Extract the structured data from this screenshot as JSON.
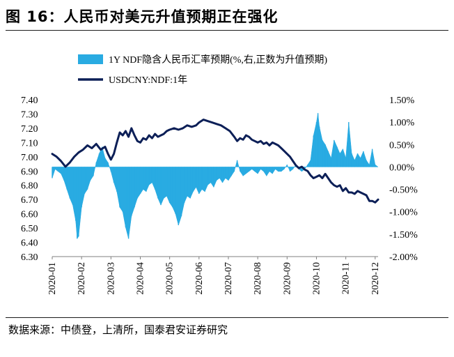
{
  "header": {
    "title": "图 16：人民币对美元升值预期正在强化"
  },
  "footer": {
    "source": "数据来源：中债登，上清所，国泰君安证券研究"
  },
  "colors": {
    "bar": "#29abe2",
    "line": "#0c1f57",
    "axis": "#7f7f7f",
    "text": "#000000"
  },
  "chart_data": {
    "type": "bar+line",
    "title": "",
    "legend": [
      {
        "name": "1Y NDF隐含人民币汇率预期(%,右,正数为升值预期)",
        "kind": "bar"
      },
      {
        "name": "USDCNY:NDF:1年",
        "kind": "line"
      }
    ],
    "legend_position": "top-center",
    "x_tick_labels": [
      "2020-01",
      "2020-02",
      "2020-03",
      "2020-04",
      "2020-05",
      "2020-06",
      "2020-07",
      "2020-08",
      "2020-09",
      "2020-10",
      "2020-11",
      "2020-12"
    ],
    "y_left": {
      "ticks": [
        "7.40",
        "7.30",
        "7.20",
        "7.10",
        "7.00",
        "6.90",
        "6.80",
        "6.70",
        "6.60",
        "6.50",
        "6.40",
        "6.30"
      ],
      "range": [
        6.3,
        7.4
      ]
    },
    "y_right": {
      "ticks": [
        "1.50%",
        "1.00%",
        "0.50%",
        "0.00%",
        "-0.50%",
        "-1.00%",
        "-1.50%",
        "-2.00%"
      ],
      "range": [
        -2.0,
        1.5
      ]
    },
    "months_span": [
      0,
      11.1
    ],
    "series": [
      {
        "name": "USDCNY:NDF:1年",
        "axis": "left",
        "kind": "line",
        "points": [
          [
            0.0,
            7.02
          ],
          [
            0.15,
            7.0
          ],
          [
            0.3,
            6.97
          ],
          [
            0.45,
            6.93
          ],
          [
            0.6,
            6.96
          ],
          [
            0.75,
            7.0
          ],
          [
            0.9,
            7.03
          ],
          [
            1.05,
            7.05
          ],
          [
            1.2,
            7.08
          ],
          [
            1.35,
            7.06
          ],
          [
            1.5,
            7.09
          ],
          [
            1.65,
            7.05
          ],
          [
            1.8,
            7.07
          ],
          [
            1.9,
            7.02
          ],
          [
            2.0,
            6.98
          ],
          [
            2.1,
            7.02
          ],
          [
            2.2,
            7.1
          ],
          [
            2.3,
            7.17
          ],
          [
            2.4,
            7.15
          ],
          [
            2.5,
            7.18
          ],
          [
            2.6,
            7.14
          ],
          [
            2.7,
            7.2
          ],
          [
            2.8,
            7.15
          ],
          [
            2.9,
            7.11
          ],
          [
            3.0,
            7.1
          ],
          [
            3.1,
            7.13
          ],
          [
            3.2,
            7.12
          ],
          [
            3.3,
            7.15
          ],
          [
            3.4,
            7.13
          ],
          [
            3.5,
            7.16
          ],
          [
            3.6,
            7.14
          ],
          [
            3.7,
            7.15
          ],
          [
            3.8,
            7.16
          ],
          [
            3.9,
            7.18
          ],
          [
            4.0,
            7.19
          ],
          [
            4.15,
            7.2
          ],
          [
            4.3,
            7.19
          ],
          [
            4.45,
            7.2
          ],
          [
            4.6,
            7.22
          ],
          [
            4.75,
            7.21
          ],
          [
            4.9,
            7.22
          ],
          [
            5.0,
            7.24
          ],
          [
            5.15,
            7.26
          ],
          [
            5.3,
            7.25
          ],
          [
            5.45,
            7.24
          ],
          [
            5.6,
            7.23
          ],
          [
            5.75,
            7.22
          ],
          [
            5.9,
            7.2
          ],
          [
            6.05,
            7.18
          ],
          [
            6.2,
            7.14
          ],
          [
            6.3,
            7.11
          ],
          [
            6.4,
            7.13
          ],
          [
            6.5,
            7.12
          ],
          [
            6.6,
            7.15
          ],
          [
            6.7,
            7.14
          ],
          [
            6.8,
            7.12
          ],
          [
            6.9,
            7.11
          ],
          [
            7.0,
            7.1
          ],
          [
            7.1,
            7.11
          ],
          [
            7.2,
            7.09
          ],
          [
            7.3,
            7.1
          ],
          [
            7.4,
            7.08
          ],
          [
            7.5,
            7.1
          ],
          [
            7.6,
            7.09
          ],
          [
            7.7,
            7.08
          ],
          [
            7.8,
            7.06
          ],
          [
            7.9,
            7.04
          ],
          [
            8.0,
            7.02
          ],
          [
            8.1,
            7.0
          ],
          [
            8.2,
            6.97
          ],
          [
            8.3,
            6.94
          ],
          [
            8.4,
            6.92
          ],
          [
            8.5,
            6.93
          ],
          [
            8.6,
            6.91
          ],
          [
            8.7,
            6.9
          ],
          [
            8.8,
            6.87
          ],
          [
            8.9,
            6.85
          ],
          [
            9.0,
            6.86
          ],
          [
            9.1,
            6.87
          ],
          [
            9.2,
            6.85
          ],
          [
            9.3,
            6.88
          ],
          [
            9.4,
            6.85
          ],
          [
            9.5,
            6.82
          ],
          [
            9.6,
            6.8
          ],
          [
            9.7,
            6.79
          ],
          [
            9.8,
            6.8
          ],
          [
            9.9,
            6.76
          ],
          [
            10.0,
            6.78
          ],
          [
            10.1,
            6.75
          ],
          [
            10.2,
            6.75
          ],
          [
            10.3,
            6.74
          ],
          [
            10.4,
            6.76
          ],
          [
            10.5,
            6.75
          ],
          [
            10.6,
            6.74
          ],
          [
            10.7,
            6.73
          ],
          [
            10.8,
            6.69
          ],
          [
            10.9,
            6.69
          ],
          [
            11.0,
            6.68
          ],
          [
            11.1,
            6.7
          ]
        ]
      },
      {
        "name": "1Y NDF隐含人民币汇率预期(%,右,正数为升值预期)",
        "axis": "right",
        "kind": "bar",
        "points": [
          [
            0.0,
            -0.25
          ],
          [
            0.1,
            -0.05
          ],
          [
            0.2,
            -0.1
          ],
          [
            0.3,
            -0.15
          ],
          [
            0.4,
            -0.3
          ],
          [
            0.5,
            -0.5
          ],
          [
            0.6,
            -0.7
          ],
          [
            0.7,
            -0.85
          ],
          [
            0.8,
            -1.2
          ],
          [
            0.85,
            -1.6
          ],
          [
            0.9,
            -1.55
          ],
          [
            1.0,
            -0.9
          ],
          [
            1.1,
            -0.6
          ],
          [
            1.2,
            -0.5
          ],
          [
            1.3,
            -0.3
          ],
          [
            1.4,
            -0.2
          ],
          [
            1.5,
            0.1
          ],
          [
            1.6,
            0.3
          ],
          [
            1.7,
            0.45
          ],
          [
            1.8,
            0.2
          ],
          [
            1.9,
            0.1
          ],
          [
            2.0,
            -0.1
          ],
          [
            2.1,
            -0.35
          ],
          [
            2.2,
            -0.55
          ],
          [
            2.3,
            -0.9
          ],
          [
            2.4,
            -1.0
          ],
          [
            2.5,
            -1.35
          ],
          [
            2.6,
            -1.6
          ],
          [
            2.7,
            -1.1
          ],
          [
            2.8,
            -0.9
          ],
          [
            2.9,
            -0.7
          ],
          [
            3.0,
            -0.6
          ],
          [
            3.1,
            -0.5
          ],
          [
            3.2,
            -0.55
          ],
          [
            3.3,
            -0.4
          ],
          [
            3.4,
            -0.35
          ],
          [
            3.5,
            -0.5
          ],
          [
            3.6,
            -0.7
          ],
          [
            3.7,
            -0.85
          ],
          [
            3.8,
            -0.7
          ],
          [
            3.9,
            -0.65
          ],
          [
            4.0,
            -0.8
          ],
          [
            4.1,
            -0.9
          ],
          [
            4.2,
            -1.05
          ],
          [
            4.3,
            -1.3
          ],
          [
            4.4,
            -1.1
          ],
          [
            4.5,
            -0.8
          ],
          [
            4.6,
            -0.65
          ],
          [
            4.7,
            -0.7
          ],
          [
            4.8,
            -0.55
          ],
          [
            4.9,
            -0.45
          ],
          [
            5.0,
            -0.6
          ],
          [
            5.1,
            -0.5
          ],
          [
            5.2,
            -0.55
          ],
          [
            5.3,
            -0.4
          ],
          [
            5.4,
            -0.35
          ],
          [
            5.5,
            -0.45
          ],
          [
            5.6,
            -0.3
          ],
          [
            5.7,
            -0.25
          ],
          [
            5.8,
            -0.35
          ],
          [
            5.9,
            -0.25
          ],
          [
            6.0,
            -0.3
          ],
          [
            6.1,
            -0.2
          ],
          [
            6.2,
            -0.1
          ],
          [
            6.3,
            0.15
          ],
          [
            6.4,
            -0.1
          ],
          [
            6.5,
            -0.2
          ],
          [
            6.6,
            -0.15
          ],
          [
            6.7,
            -0.1
          ],
          [
            6.8,
            -0.05
          ],
          [
            6.9,
            -0.1
          ],
          [
            7.0,
            -0.15
          ],
          [
            7.1,
            -0.05
          ],
          [
            7.2,
            -0.1
          ],
          [
            7.3,
            -0.2
          ],
          [
            7.4,
            -0.1
          ],
          [
            7.5,
            -0.15
          ],
          [
            7.6,
            -0.05
          ],
          [
            7.7,
            -0.1
          ],
          [
            7.8,
            -0.1
          ],
          [
            7.9,
            -0.05
          ],
          [
            8.0,
            0.05
          ],
          [
            8.1,
            -0.1
          ],
          [
            8.2,
            -0.05
          ],
          [
            8.3,
            0.05
          ],
          [
            8.4,
            -0.05
          ],
          [
            8.5,
            -0.1
          ],
          [
            8.6,
            -0.05
          ],
          [
            8.7,
            0.05
          ],
          [
            8.8,
            0.15
          ],
          [
            8.9,
            0.7
          ],
          [
            9.0,
            1.0
          ],
          [
            9.05,
            1.2
          ],
          [
            9.1,
            0.9
          ],
          [
            9.2,
            0.6
          ],
          [
            9.3,
            0.5
          ],
          [
            9.4,
            0.35
          ],
          [
            9.5,
            0.2
          ],
          [
            9.6,
            0.6
          ],
          [
            9.7,
            0.45
          ],
          [
            9.8,
            0.3
          ],
          [
            9.9,
            0.4
          ],
          [
            10.0,
            0.2
          ],
          [
            10.1,
            1.0
          ],
          [
            10.2,
            0.3
          ],
          [
            10.3,
            0.15
          ],
          [
            10.4,
            0.3
          ],
          [
            10.5,
            0.2
          ],
          [
            10.6,
            0.35
          ],
          [
            10.7,
            0.15
          ],
          [
            10.8,
            0.05
          ],
          [
            10.9,
            0.4
          ],
          [
            11.0,
            0.05
          ],
          [
            11.1,
            0.0
          ]
        ]
      }
    ]
  }
}
